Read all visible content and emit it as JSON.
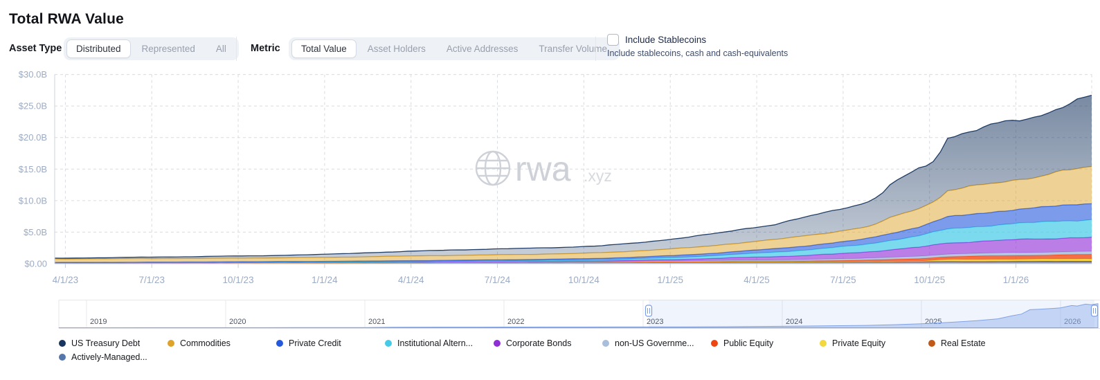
{
  "title": "Total RWA Value",
  "filters": {
    "asset_type": {
      "label": "Asset Type",
      "options": [
        "Distributed",
        "Represented",
        "All"
      ],
      "selected": "Distributed"
    },
    "metric": {
      "label": "Metric",
      "options": [
        "Total Value",
        "Asset Holders",
        "Active Addresses",
        "Transfer Volume"
      ],
      "selected": "Total Value"
    },
    "stablecoins": {
      "label": "Include Stablecoins",
      "description": "Include stablecoins, cash and cash-equivalents",
      "checked": false
    }
  },
  "watermark": {
    "brand": "rwa",
    "suffix": ".xyz"
  },
  "chart_data": {
    "type": "area",
    "stacked": true,
    "unit": "USD billions",
    "grid": true,
    "legend_position": "bottom",
    "ylim": [
      0,
      30
    ],
    "y_ticks": [
      "$0.00",
      "$5.0B",
      "$10.0B",
      "$15.0B",
      "$20.0B",
      "$25.0B",
      "$30.0B"
    ],
    "x_ticks": [
      "4/1/23",
      "7/1/23",
      "10/1/23",
      "1/1/24",
      "4/1/24",
      "7/1/24",
      "10/1/24",
      "1/1/25",
      "4/1/25",
      "7/1/25",
      "10/1/25",
      "1/1/26"
    ],
    "x_start": "2023-03",
    "x_end": "2026-03",
    "x_resolution": "monthly",
    "stack_order": "first-series-on-top",
    "series": [
      {
        "name": "US Treasury Debt",
        "color": "#17355f",
        "fill": "gradient",
        "values": [
          0.12,
          0.15,
          0.18,
          0.21,
          0.25,
          0.28,
          0.32,
          0.35,
          0.4,
          0.45,
          0.55,
          0.65,
          0.72,
          0.8,
          0.88,
          0.92,
          0.95,
          1.0,
          1.05,
          1.1,
          1.25,
          1.45,
          1.7,
          1.9,
          2.2,
          2.4,
          2.9,
          3.4,
          3.9,
          5.2,
          6.2,
          8.5,
          8.9,
          9.3,
          9.6,
          10.4,
          11.0
        ]
      },
      {
        "name": "Commodities",
        "color": "#dda32b",
        "fill": "rgba(221,163,43,0.50)",
        "values": [
          0.55,
          0.56,
          0.56,
          0.57,
          0.57,
          0.58,
          0.58,
          0.58,
          0.6,
          0.62,
          0.63,
          0.7,
          0.72,
          0.75,
          0.78,
          0.78,
          0.8,
          0.82,
          0.85,
          0.88,
          0.95,
          1.05,
          1.1,
          1.2,
          1.35,
          1.45,
          1.6,
          1.7,
          1.85,
          2.5,
          3.0,
          4.2,
          4.4,
          4.6,
          4.9,
          5.4,
          5.8
        ]
      },
      {
        "name": "Private Credit",
        "color": "#2458dd",
        "fill": "rgba(36,88,221,0.60)",
        "values": [
          0.06,
          0.06,
          0.07,
          0.07,
          0.08,
          0.08,
          0.09,
          0.09,
          0.1,
          0.1,
          0.11,
          0.12,
          0.13,
          0.14,
          0.15,
          0.16,
          0.17,
          0.18,
          0.2,
          0.22,
          0.26,
          0.3,
          0.35,
          0.4,
          0.48,
          0.55,
          0.65,
          0.75,
          0.85,
          1.1,
          1.4,
          1.9,
          2.05,
          2.2,
          2.3,
          2.45,
          2.6
        ]
      },
      {
        "name": "Institutional Altern...",
        "color": "#45cbe8",
        "fill": "rgba(69,203,232,0.70)",
        "values": [
          0.02,
          0.02,
          0.02,
          0.03,
          0.03,
          0.03,
          0.04,
          0.04,
          0.05,
          0.05,
          0.06,
          0.07,
          0.08,
          0.09,
          0.1,
          0.11,
          0.12,
          0.14,
          0.16,
          0.18,
          0.22,
          0.28,
          0.35,
          0.45,
          0.55,
          0.7,
          0.85,
          1.0,
          1.15,
          1.5,
          1.8,
          2.2,
          2.35,
          2.5,
          2.6,
          2.7,
          2.8
        ]
      },
      {
        "name": "Corporate Bonds",
        "color": "#8f2fd6",
        "fill": "rgba(143,47,214,0.62)",
        "values": [
          0.01,
          0.01,
          0.01,
          0.02,
          0.02,
          0.02,
          0.02,
          0.03,
          0.03,
          0.03,
          0.04,
          0.04,
          0.05,
          0.05,
          0.06,
          0.07,
          0.08,
          0.09,
          0.1,
          0.12,
          0.15,
          0.2,
          0.28,
          0.35,
          0.45,
          0.55,
          0.65,
          0.8,
          0.95,
          1.2,
          1.45,
          1.75,
          1.9,
          2.05,
          2.1,
          2.2,
          2.3
        ]
      },
      {
        "name": "non-US Governme...",
        "color": "#a9bedb",
        "fill": "rgba(169,190,219,0.85)",
        "values": [
          0.01,
          0.01,
          0.01,
          0.01,
          0.01,
          0.02,
          0.02,
          0.02,
          0.02,
          0.02,
          0.03,
          0.03,
          0.03,
          0.04,
          0.04,
          0.05,
          0.05,
          0.06,
          0.07,
          0.08,
          0.09,
          0.1,
          0.12,
          0.14,
          0.16,
          0.18,
          0.2,
          0.24,
          0.28,
          0.32,
          0.36,
          0.4,
          0.42,
          0.43,
          0.44,
          0.45,
          0.45
        ]
      },
      {
        "name": "Public Equity",
        "color": "#ee4613",
        "fill": "rgba(238,70,19,0.78)",
        "values": [
          0,
          0,
          0,
          0,
          0,
          0,
          0,
          0,
          0.01,
          0.01,
          0.01,
          0.01,
          0.01,
          0.01,
          0.02,
          0.02,
          0.02,
          0.02,
          0.02,
          0.03,
          0.04,
          0.05,
          0.05,
          0.08,
          0.1,
          0.1,
          0.12,
          0.15,
          0.2,
          0.3,
          0.4,
          0.45,
          0.55,
          0.6,
          0.62,
          0.68,
          0.75
        ]
      },
      {
        "name": "Private Equity",
        "color": "#f2d73e",
        "fill": "rgba(242,215,62,0.90)",
        "values": [
          0,
          0,
          0,
          0,
          0,
          0,
          0,
          0,
          0,
          0,
          0,
          0,
          0,
          0,
          0,
          0,
          0,
          0,
          0,
          0,
          0.01,
          0.01,
          0.01,
          0.01,
          0.01,
          0.01,
          0.02,
          0.02,
          0.03,
          0.04,
          0.05,
          0.28,
          0.28,
          0.29,
          0.3,
          0.3,
          0.3
        ]
      },
      {
        "name": "Real Estate",
        "color": "#c15a18",
        "fill": "rgba(193,90,24,0.88)",
        "values": [
          0.01,
          0.01,
          0.01,
          0.01,
          0.01,
          0.01,
          0.01,
          0.02,
          0.02,
          0.02,
          0.02,
          0.02,
          0.03,
          0.03,
          0.03,
          0.04,
          0.04,
          0.04,
          0.05,
          0.05,
          0.05,
          0.06,
          0.06,
          0.07,
          0.07,
          0.07,
          0.08,
          0.08,
          0.09,
          0.09,
          0.09,
          0.1,
          0.11,
          0.12,
          0.13,
          0.14,
          0.15
        ]
      },
      {
        "name": "Actively-Managed...",
        "color": "#5577ab",
        "fill": "rgba(85,119,171,0.65)",
        "values": [
          0.1,
          0.1,
          0.1,
          0.11,
          0.11,
          0.11,
          0.12,
          0.12,
          0.12,
          0.13,
          0.13,
          0.14,
          0.14,
          0.15,
          0.15,
          0.16,
          0.16,
          0.17,
          0.17,
          0.18,
          0.19,
          0.2,
          0.2,
          0.21,
          0.22,
          0.22,
          0.23,
          0.24,
          0.25,
          0.26,
          0.27,
          0.28,
          0.28,
          0.29,
          0.29,
          0.3,
          0.3
        ]
      }
    ]
  },
  "brush": {
    "years": [
      "2019",
      "2020",
      "2021",
      "2022",
      "2023",
      "2024",
      "2025",
      "2026"
    ],
    "selected_range": {
      "from": "2023-03",
      "to": "2026-03"
    },
    "profile": [
      [
        2018.8,
        0.02
      ],
      [
        2019,
        0.03
      ],
      [
        2019.5,
        0.05
      ],
      [
        2020,
        0.08
      ],
      [
        2020.5,
        0.12
      ],
      [
        2021,
        0.25
      ],
      [
        2021.2,
        0.55
      ],
      [
        2021.5,
        0.65
      ],
      [
        2021.8,
        0.7
      ],
      [
        2022,
        0.75
      ],
      [
        2022.3,
        0.85
      ],
      [
        2022.6,
        0.8
      ],
      [
        2023,
        0.95
      ],
      [
        2023.3,
        1.0
      ],
      [
        2023.6,
        1.15
      ],
      [
        2024,
        1.6
      ],
      [
        2024.3,
        2.1
      ],
      [
        2024.6,
        2.6
      ],
      [
        2024.8,
        3.3
      ],
      [
        2025,
        4.4
      ],
      [
        2025.2,
        5.8
      ],
      [
        2025.4,
        7.8
      ],
      [
        2025.55,
        9.8
      ],
      [
        2025.65,
        13.0
      ],
      [
        2025.72,
        15.0
      ],
      [
        2025.78,
        19.8
      ],
      [
        2025.85,
        20.3
      ],
      [
        2025.95,
        21.2
      ],
      [
        2026.0,
        21.8
      ],
      [
        2026.08,
        24.3
      ],
      [
        2026.12,
        23.8
      ],
      [
        2026.18,
        25.8
      ],
      [
        2026.22,
        25.2
      ],
      [
        2026.27,
        26.4
      ]
    ]
  }
}
